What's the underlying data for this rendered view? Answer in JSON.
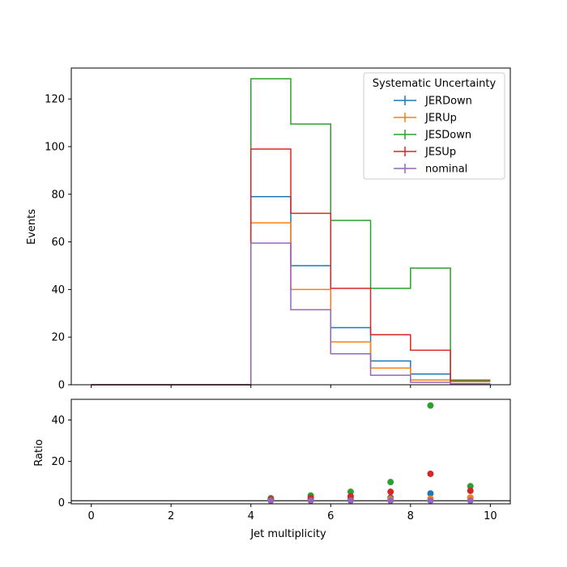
{
  "chart_data": [
    {
      "type": "step",
      "panel": "main",
      "ylabel": "Events",
      "xlim": [
        -0.5,
        10.5
      ],
      "ylim": [
        0,
        133
      ],
      "yticks": [
        0,
        20,
        40,
        60,
        80,
        100,
        120
      ],
      "bin_edges": [
        0,
        1,
        2,
        3,
        4,
        5,
        6,
        7,
        8,
        9,
        10
      ],
      "legend": {
        "title": "Systematic Uncertainty",
        "location": "upper right"
      },
      "series": [
        {
          "name": "JERDown",
          "color": "#1f77b4",
          "values": [
            0,
            0,
            0,
            0,
            79,
            50,
            24,
            10,
            4.5,
            0.5
          ]
        },
        {
          "name": "JERUp",
          "color": "#ff7f0e",
          "values": [
            0,
            0,
            0,
            0,
            68,
            40,
            18,
            7,
            2,
            0.5
          ]
        },
        {
          "name": "JESDown",
          "color": "#2ca02c",
          "values": [
            0,
            0,
            0,
            0,
            128.5,
            109.5,
            69,
            40.5,
            49,
            2
          ]
        },
        {
          "name": "JESUp",
          "color": "#d62728",
          "values": [
            0,
            0,
            0,
            0,
            99,
            72,
            40.5,
            21,
            14.5,
            1.5
          ]
        },
        {
          "name": "nominal",
          "color": "#9467bd",
          "values": [
            0,
            0,
            0,
            0,
            59.5,
            31.5,
            13,
            4,
            1,
            0.2
          ]
        }
      ]
    },
    {
      "type": "scatter",
      "panel": "ratio",
      "xlabel": "Jet multiplicity",
      "ylabel": "Ratio",
      "xlim": [
        -0.5,
        10.5
      ],
      "ylim": [
        -0.5,
        50
      ],
      "xticks": [
        0,
        2,
        4,
        6,
        8,
        10
      ],
      "yticks": [
        0,
        20,
        40
      ],
      "reference_line": 1,
      "series": [
        {
          "name": "JERDown",
          "color": "#1f77b4",
          "x": [
            4.5,
            5.5,
            6.5,
            7.5,
            8.5,
            9.5
          ],
          "y": [
            1.3,
            1.6,
            1.8,
            2.5,
            4.5,
            2.5
          ]
        },
        {
          "name": "JERUp",
          "color": "#ff7f0e",
          "x": [
            4.5,
            5.5,
            6.5,
            7.5,
            8.5,
            9.5
          ],
          "y": [
            1.1,
            1.3,
            1.4,
            1.75,
            2,
            2.5
          ]
        },
        {
          "name": "JESDown",
          "color": "#2ca02c",
          "x": [
            4.5,
            5.5,
            6.5,
            7.5,
            8.5,
            9.5
          ],
          "y": [
            2.2,
            3.5,
            5.3,
            10,
            47,
            8
          ]
        },
        {
          "name": "JESUp",
          "color": "#d62728",
          "x": [
            4.5,
            5.5,
            6.5,
            7.5,
            8.5,
            9.5
          ],
          "y": [
            1.7,
            2.3,
            3.1,
            5.3,
            14,
            5.8
          ]
        },
        {
          "name": "nominal",
          "color": "#9467bd",
          "x": [
            4.5,
            5.5,
            6.5,
            7.5,
            8.5,
            9.5
          ],
          "y": [
            1,
            1,
            1,
            1,
            1,
            1
          ]
        }
      ]
    }
  ]
}
